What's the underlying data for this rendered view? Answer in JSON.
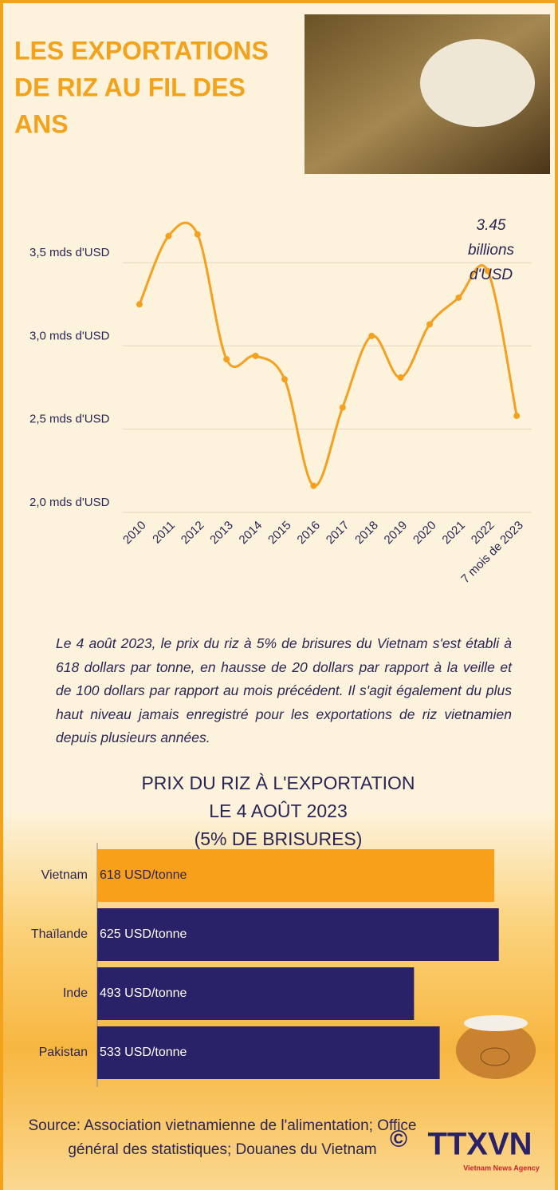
{
  "header": {
    "title_lines": [
      "LES EXPORTATIONS",
      "DE RIZ AU FIL DES",
      "ANS"
    ]
  },
  "chart_data": [
    {
      "type": "line",
      "categories": [
        "2010",
        "2011",
        "2012",
        "2013",
        "2014",
        "2015",
        "2016",
        "2017",
        "2018",
        "2019",
        "2020",
        "2021",
        "2022",
        "7 mois de 2023"
      ],
      "series": [
        {
          "name": "Exportations de riz",
          "color": "#f5a11f",
          "values": [
            3.25,
            3.66,
            3.67,
            2.92,
            2.94,
            2.8,
            2.16,
            2.63,
            3.06,
            2.81,
            3.13,
            3.29,
            3.45,
            2.58
          ]
        }
      ],
      "ylim": [
        2.0,
        3.75
      ],
      "yticks": [
        {
          "value": 2.0,
          "label": "2,0 mds d'USD"
        },
        {
          "value": 2.5,
          "label": "2,5 mds d'USD"
        },
        {
          "value": 3.0,
          "label": "3,0 mds d'USD"
        },
        {
          "value": 3.5,
          "label": "3,5 mds d'USD"
        }
      ],
      "grid": true,
      "annotation_lines": [
        "3.45",
        "billions",
        "d'USD"
      ]
    },
    {
      "type": "hbar",
      "title_lines": [
        "PRIX DU RIZ À L'EXPORTATION",
        "LE 4 AOÛT 2023",
        "(5% DE BRISURES)"
      ],
      "categories": [
        "Vietnam",
        "Thaïlande",
        "Inde",
        "Pakistan"
      ],
      "values": [
        618,
        625,
        493,
        533
      ],
      "value_labels": [
        "618 USD/tonne",
        "625 USD/tonne",
        "493 USD/tonne",
        "533 USD/tonne"
      ],
      "colors": [
        "#f9a01b",
        "#2a2268",
        "#2a2268",
        "#2a2268"
      ],
      "xlim": [
        0,
        700
      ]
    }
  ],
  "paragraph": "Le 4 août 2023, le prix du riz à 5% de brisures du Vietnam s'est établi à 618 dollars par tonne, en hausse de 20 dollars par rapport à la veille et de 100 dollars par rapport au mois précédent. Il s'agit également du plus haut niveau jamais enregistré pour les exportations de riz vietnamien depuis plusieurs années.",
  "source": "Source: Association vietnamienne de l'alimentation; Office général des statistiques; Douanes du Vietnam",
  "logo": {
    "name": "TTXVN",
    "tagline": "Vietnam News Agency"
  }
}
